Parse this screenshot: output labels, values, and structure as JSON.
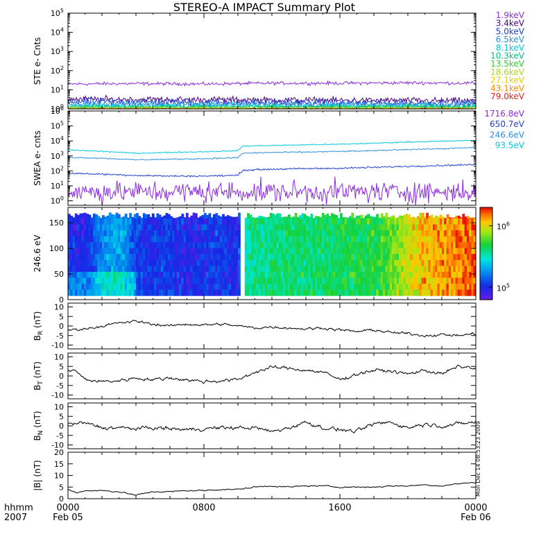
{
  "chart_data": {
    "type": "line",
    "title": "STEREO-A IMPACT Summary Plot",
    "x_axis": {
      "label_row1": "hhmm",
      "label_row2": "2007",
      "range_hours": [
        0,
        24
      ],
      "ticks": [
        {
          "hour": 0,
          "label": "0000",
          "sub": "Feb 05"
        },
        {
          "hour": 8,
          "label": "0800",
          "sub": ""
        },
        {
          "hour": 16,
          "label": "1600",
          "sub": ""
        },
        {
          "hour": 24,
          "label": "0000",
          "sub": "Feb 06"
        }
      ]
    },
    "timestamp": "Mon Dec 14 08:53:23 2009",
    "panels": [
      {
        "id": "ste",
        "ylabel": "STE e- Cnts",
        "scale": "log",
        "ylim_exp": [
          0,
          5
        ],
        "tick_exps": [
          0,
          1,
          2,
          3,
          4,
          5
        ],
        "series": [
          {
            "name": "1.9keV",
            "color": "#8a2be2",
            "level": 20,
            "noise": 0.06,
            "t": [
              0,
              4,
              8,
              12,
              16,
              20,
              24
            ],
            "v": [
              20,
              21,
              20,
              22,
              22,
              23,
              22
            ]
          },
          {
            "name": "3.4keV",
            "color": "#4b0082",
            "level": 3.0,
            "noise": 0.12,
            "t": [
              0,
              8,
              16,
              24
            ],
            "v": [
              3.2,
              3.0,
              2.8,
              2.6
            ]
          },
          {
            "name": "5.0keV",
            "color": "#1f3fd6",
            "level": 2.3,
            "noise": 0.14,
            "t": [
              0,
              8,
              16,
              24
            ],
            "v": [
              2.4,
              2.2,
              2.0,
              1.9
            ]
          },
          {
            "name": "6.5keV",
            "color": "#2b8fe0",
            "level": 1.8,
            "noise": 0.12,
            "t": [
              0,
              24
            ],
            "v": [
              1.8,
              1.7
            ]
          },
          {
            "name": "8.1keV",
            "color": "#00c8e0",
            "level": 1.5,
            "noise": 0.1,
            "t": [
              0,
              24
            ],
            "v": [
              1.5,
              1.4
            ]
          },
          {
            "name": "10.3keV",
            "color": "#00c080",
            "level": 1.3,
            "noise": 0.08,
            "t": [
              0,
              24
            ],
            "v": [
              1.3,
              1.3
            ]
          },
          {
            "name": "13.5keV",
            "color": "#2ecc2e",
            "level": 1.2,
            "noise": 0.06,
            "t": [
              0,
              24
            ],
            "v": [
              1.2,
              1.2
            ]
          },
          {
            "name": "18.6keV",
            "color": "#a8d820",
            "level": 1.1,
            "noise": 0.04,
            "t": [
              0,
              24
            ],
            "v": [
              1.1,
              1.1
            ]
          },
          {
            "name": "27.1keV",
            "color": "#e8d000",
            "level": 1.05,
            "noise": 0.03,
            "t": [
              0,
              24
            ],
            "v": [
              1.05,
              1.05
            ]
          },
          {
            "name": "43.1keV",
            "color": "#f08c00",
            "level": 1.0,
            "noise": 0.02,
            "t": [
              0,
              24
            ],
            "v": [
              1.0,
              1.0
            ]
          },
          {
            "name": "79.0keV",
            "color": "#e02020",
            "level": 1.0,
            "noise": 0.02,
            "t": [
              0,
              24
            ],
            "v": [
              1.0,
              1.0
            ]
          }
        ]
      },
      {
        "id": "swea",
        "ylabel": "SWEA e- cnts",
        "scale": "log",
        "ylim_exp": [
          -0.3,
          6
        ],
        "tick_exps": [
          0,
          1,
          2,
          3,
          4,
          5,
          6
        ],
        "series": [
          {
            "name": "1716.8eV",
            "color": "#8a2be2",
            "noise": 0.5,
            "t": [
              0,
              24
            ],
            "v": [
              4,
              4
            ]
          },
          {
            "name": "650.7eV",
            "color": "#1f3fd6",
            "noise": 0.04,
            "t": [
              0,
              2,
              4,
              6,
              8,
              10,
              10.3,
              12,
              14,
              16,
              18,
              20,
              22,
              24
            ],
            "v": [
              70,
              60,
              50,
              45,
              45,
              50,
              110,
              130,
              140,
              150,
              170,
              200,
              230,
              260
            ]
          },
          {
            "name": "246.6eV",
            "color": "#2b8fe0",
            "noise": 0.03,
            "t": [
              0,
              2,
              4,
              6,
              8,
              10,
              10.3,
              12,
              14,
              16,
              18,
              20,
              22,
              24
            ],
            "v": [
              800,
              700,
              550,
              600,
              650,
              750,
              1500,
              1700,
              1800,
              2000,
              2200,
              2700,
              3000,
              3600
            ]
          },
          {
            "name": "93.5eV",
            "color": "#00c8e0",
            "noise": 0.025,
            "t": [
              0,
              2,
              4,
              6,
              8,
              10,
              10.3,
              12,
              14,
              16,
              18,
              20,
              22,
              24
            ],
            "v": [
              2500,
              2000,
              1500,
              1700,
              1900,
              2200,
              4500,
              5000,
              5500,
              6000,
              7000,
              8500,
              9500,
              11000
            ]
          }
        ]
      },
      {
        "id": "pad",
        "ylabel": "246.6 eV",
        "type": "heatmap",
        "ylim": [
          0,
          180
        ],
        "data_ylim": [
          8,
          170
        ],
        "yticks": [
          0,
          50,
          100,
          150
        ],
        "colorbar_ticks": [
          {
            "exp": 6,
            "label": "10",
            "sup": "6"
          },
          {
            "exp": 5,
            "label": "10",
            "sup": "5"
          }
        ],
        "colorbar_range_exp": [
          4.8,
          6.3
        ],
        "gap_hours": [
          10.1,
          10.4
        ],
        "level_profile": {
          "t": [
            0,
            1,
            2,
            3,
            4,
            5,
            6,
            7,
            8,
            9,
            10,
            10.3,
            12,
            14,
            16,
            18,
            19,
            20,
            21,
            22,
            23,
            24
          ],
          "v": [
            0.15,
            0.12,
            0.3,
            0.35,
            0.2,
            0.15,
            0.18,
            0.12,
            0.15,
            0.18,
            0.12,
            0.5,
            0.55,
            0.55,
            0.58,
            0.6,
            0.68,
            0.78,
            0.85,
            0.88,
            0.92,
            0.95
          ]
        },
        "pitch_bias": {
          "t": [
            0,
            4,
            8,
            12,
            16,
            20,
            24
          ],
          "v": [
            0.1,
            0.15,
            0.1,
            0.05,
            0.1,
            0.2,
            0.25
          ]
        }
      },
      {
        "id": "br",
        "ylabel": "B",
        "ylabel_sub": "R",
        "ylabel_unit": " (nT)",
        "ylim": [
          -12,
          12
        ],
        "yticks": [
          -10,
          -5,
          0,
          5,
          10
        ],
        "noise": 0.35,
        "t": [
          0,
          1,
          2,
          3,
          4,
          5,
          6,
          7,
          8,
          9,
          10,
          11,
          12,
          13,
          14,
          15,
          16,
          17,
          18,
          19,
          20,
          21,
          22,
          23,
          24
        ],
        "v": [
          -2,
          -1.5,
          0,
          1.5,
          2.5,
          1,
          0,
          1,
          0.5,
          1,
          0,
          -1,
          -0.5,
          -1,
          -1.5,
          -1,
          -2,
          -3,
          -2,
          -3.5,
          -4,
          -5,
          -4.5,
          -5,
          -4
        ]
      },
      {
        "id": "bt",
        "ylabel": "B",
        "ylabel_sub": "T",
        "ylabel_unit": " (nT)",
        "ylim": [
          -12,
          12
        ],
        "yticks": [
          -10,
          -5,
          0,
          5,
          10
        ],
        "noise": 0.45,
        "t": [
          0,
          0.5,
          1,
          2,
          3,
          4,
          5,
          6,
          7,
          8,
          9,
          10,
          11,
          12,
          13,
          14,
          15,
          16,
          17,
          18,
          19,
          20,
          21,
          22,
          23,
          24
        ],
        "v": [
          3,
          2.5,
          -2,
          -3,
          -2.5,
          -1,
          -2,
          -1,
          -2,
          -3,
          -2.5,
          -2,
          2,
          4.5,
          4,
          3,
          2,
          -2,
          1,
          3,
          2.5,
          1,
          3,
          1,
          5,
          4
        ]
      },
      {
        "id": "bn",
        "ylabel": "B",
        "ylabel_sub": "N",
        "ylabel_unit": " (nT)",
        "ylim": [
          -12,
          12
        ],
        "yticks": [
          -10,
          -5,
          0,
          5,
          10
        ],
        "noise": 0.5,
        "t": [
          0,
          1,
          2,
          3,
          4,
          5,
          6,
          7,
          8,
          9,
          10,
          11,
          12,
          13,
          14,
          15,
          16,
          17,
          18,
          19,
          20,
          21,
          22,
          23,
          24
        ],
        "v": [
          1,
          1.5,
          -1,
          -1,
          -1.5,
          -1,
          -1.5,
          -2,
          -1.5,
          -1,
          -1,
          -1,
          -3,
          -1,
          2,
          -1,
          -2,
          -3,
          1,
          2,
          -1,
          1,
          0,
          1,
          2
        ]
      },
      {
        "id": "bmag",
        "ylabel": "|B| (nT)",
        "ylim": [
          0,
          20
        ],
        "yticks": [
          0,
          5,
          10,
          15,
          20
        ],
        "noise": 0.15,
        "t": [
          0,
          0.5,
          1,
          2,
          3,
          4,
          5,
          6,
          7,
          8,
          9,
          10,
          11,
          12,
          13,
          14,
          15,
          16,
          17,
          18,
          19,
          20,
          21,
          22,
          23,
          24
        ],
        "v": [
          4,
          2.5,
          3.5,
          3.5,
          3,
          1.5,
          3,
          3,
          3.5,
          3.5,
          4,
          4,
          5,
          5.5,
          5,
          5.5,
          5.5,
          5,
          5,
          5,
          5.5,
          5.5,
          6,
          5.5,
          6.5,
          7
        ]
      }
    ]
  }
}
